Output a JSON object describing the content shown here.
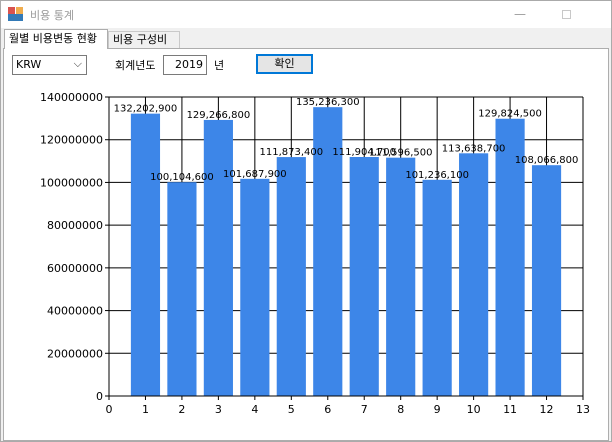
{
  "window": {
    "title": "비용 통계"
  },
  "tabs": [
    {
      "label": "월별 비용변동 현황",
      "active": true
    },
    {
      "label": "비용 구성비",
      "active": false
    }
  ],
  "controls": {
    "currency": "KRW",
    "year_label": "회계년도",
    "year_value": "2019",
    "year_suffix": "년",
    "confirm_label": "확인"
  },
  "colors": {
    "bar": "#3d86e8",
    "grid": "#000000"
  },
  "chart_data": {
    "type": "bar",
    "categories": [
      1,
      2,
      3,
      4,
      5,
      6,
      7,
      8,
      9,
      10,
      11,
      12
    ],
    "values": [
      132202900,
      100104600,
      129266800,
      101687900,
      111873400,
      135236300,
      111904700,
      111596500,
      101236100,
      113638700,
      129824500,
      108066800
    ],
    "data_labels": [
      "132,202,900",
      "100,104,600",
      "129,266,800",
      "101,687,900",
      "111,873,400",
      "135,236,300",
      "111,904,700",
      "111,596,500",
      "101,236,100",
      "113,638,700",
      "129,824,500",
      "108,066,800"
    ],
    "xlim": [
      0,
      13
    ],
    "ylim": [
      0,
      140000000
    ],
    "x_ticks": [
      "0",
      "1",
      "2",
      "3",
      "4",
      "5",
      "6",
      "7",
      "8",
      "9",
      "10",
      "11",
      "12",
      "13"
    ],
    "y_ticks": [
      "0",
      "20000000",
      "40000000",
      "60000000",
      "80000000",
      "100000000",
      "120000000",
      "140000000"
    ],
    "grid": true,
    "legend": "none"
  }
}
